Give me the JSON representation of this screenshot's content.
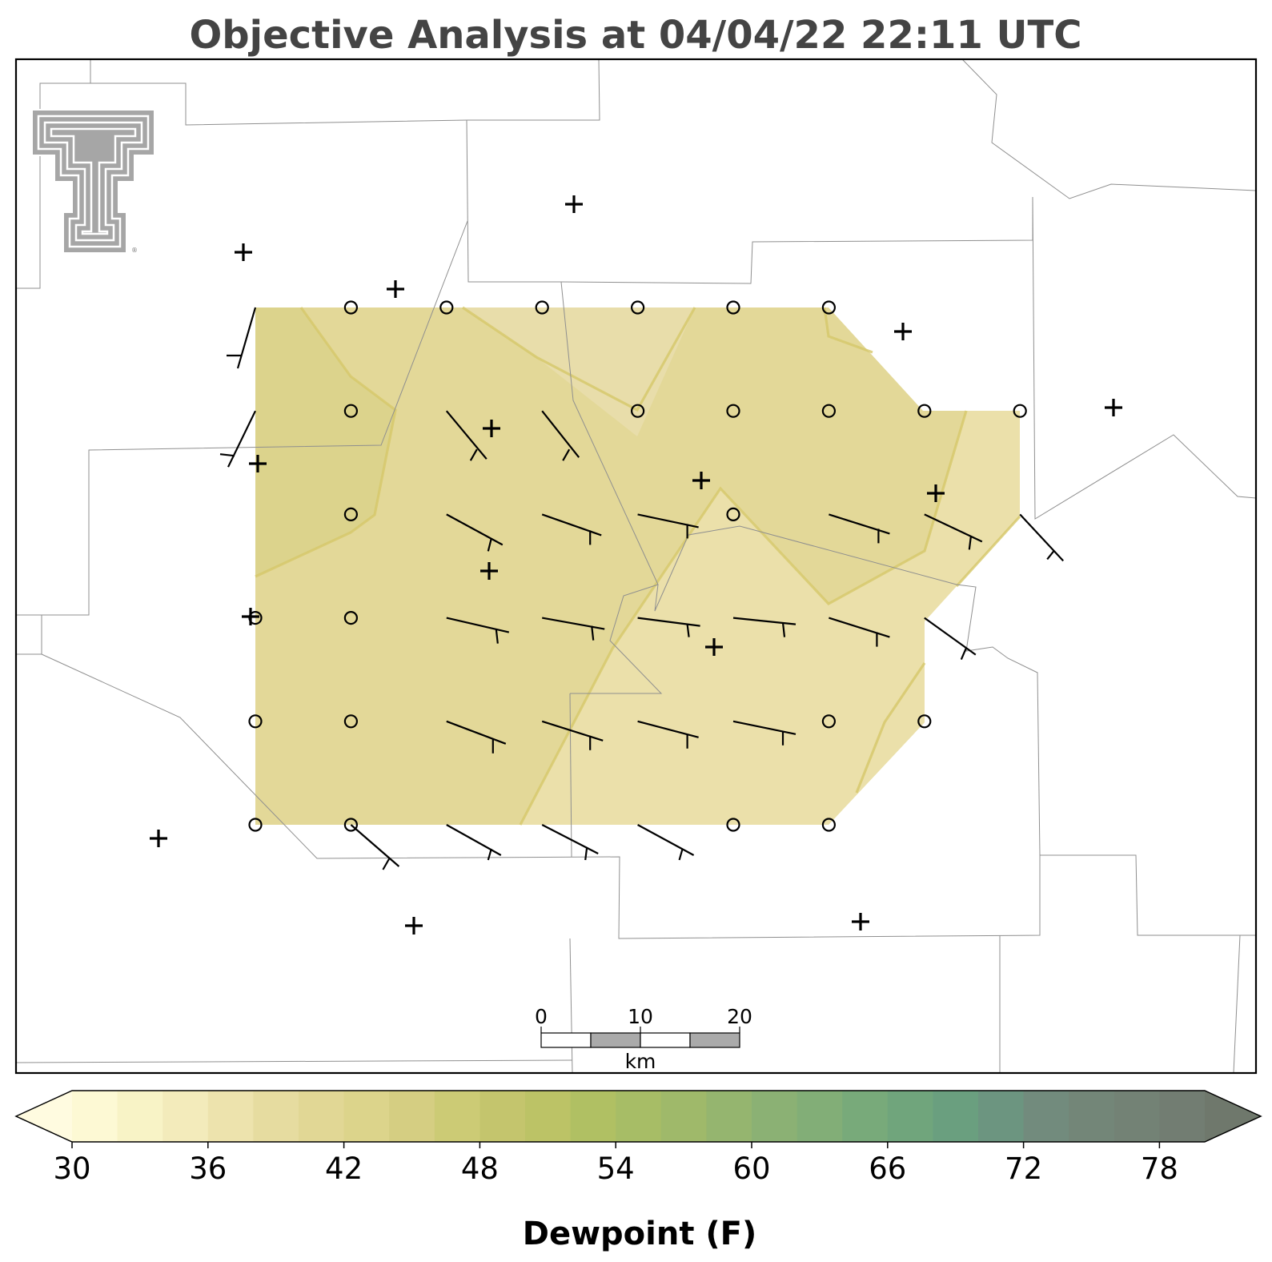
{
  "title": "Objective Analysis at 04/04/22 22:11 UTC",
  "colorbar": {
    "label": "Dewpoint (F)",
    "min": 30,
    "max": 80,
    "step": 2,
    "tick_labels": [
      "30",
      "36",
      "42",
      "48",
      "54",
      "60",
      "66",
      "72",
      "78"
    ],
    "extend": "both",
    "colors": [
      "#fdf9d4",
      "#f8f3c6",
      "#f3ebbb",
      "#ede3ad",
      "#e6dca0",
      "#e1d795",
      "#dcd48b",
      "#d5ce82",
      "#cccb75",
      "#c4c56d",
      "#bcc366",
      "#b0c063",
      "#a7bd66",
      "#9fb96a",
      "#95b56f",
      "#8bb174",
      "#82ae77",
      "#78aa7a",
      "#70a57c",
      "#6a9f7f",
      "#6c9580",
      "#728b7d",
      "#738678",
      "#738275",
      "#727d72"
    ],
    "under_color": "#fffbe0",
    "over_color": "#6f786c"
  },
  "scale_bar": {
    "labels": [
      "0",
      "10",
      "20"
    ],
    "unit": "km"
  },
  "logo": {
    "name": "Texas Tech double-T",
    "registered_mark": "®"
  },
  "analysis": {
    "grid_cols": 9,
    "grid_rows": 6,
    "region_fill_dominant": "#e3d898",
    "region_fill_east": "#ece1ad",
    "contour_color": "#d8cb6c",
    "calm_stations_grid": [
      [
        0,
        3
      ],
      [
        1,
        2
      ],
      [
        1,
        3
      ],
      [
        1,
        4
      ],
      [
        1,
        5
      ],
      [
        1,
        0
      ],
      [
        2,
        0
      ],
      [
        3,
        0
      ],
      [
        4,
        0
      ],
      [
        5,
        0
      ],
      [
        6,
        0
      ],
      [
        4,
        1
      ],
      [
        5,
        1
      ],
      [
        6,
        1
      ],
      [
        7,
        1
      ],
      [
        8,
        1
      ],
      [
        5,
        2
      ],
      [
        1,
        1
      ],
      [
        6,
        4
      ],
      [
        7,
        4
      ],
      [
        0,
        4
      ],
      [
        0,
        5
      ],
      [
        5,
        5
      ],
      [
        6,
        5
      ]
    ],
    "wind_stations_grid": [
      [
        2,
        1
      ],
      [
        3,
        1
      ],
      [
        2,
        2
      ],
      [
        3,
        2
      ],
      [
        4,
        2
      ],
      [
        6,
        2
      ],
      [
        7,
        2
      ],
      [
        8,
        2
      ],
      [
        2,
        3
      ],
      [
        3,
        3
      ],
      [
        4,
        3
      ],
      [
        5,
        3
      ],
      [
        6,
        3
      ],
      [
        7,
        3
      ],
      [
        2,
        4
      ],
      [
        3,
        4
      ],
      [
        4,
        4
      ],
      [
        5,
        4
      ],
      [
        1,
        5
      ],
      [
        2,
        5
      ],
      [
        3,
        5
      ],
      [
        4,
        5
      ],
      [
        0,
        0
      ],
      [
        0,
        1
      ]
    ]
  }
}
